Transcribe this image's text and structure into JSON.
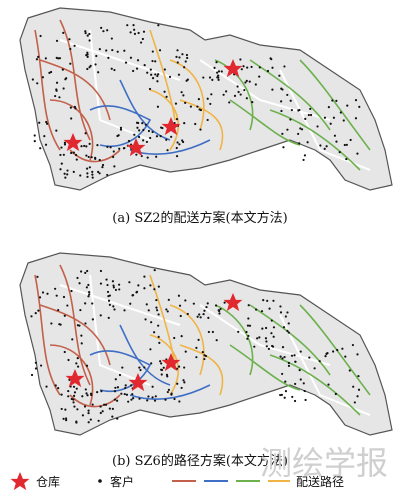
{
  "panels": [
    {
      "caption": "(a) SZ2的配送方案(本文方法)"
    },
    {
      "caption": "(b) SZ6的路径方案(本文方法)"
    }
  ],
  "legend": {
    "depot": "仓库",
    "customer": "客户",
    "route": "配送路径"
  },
  "watermark": "测绘学报"
}
